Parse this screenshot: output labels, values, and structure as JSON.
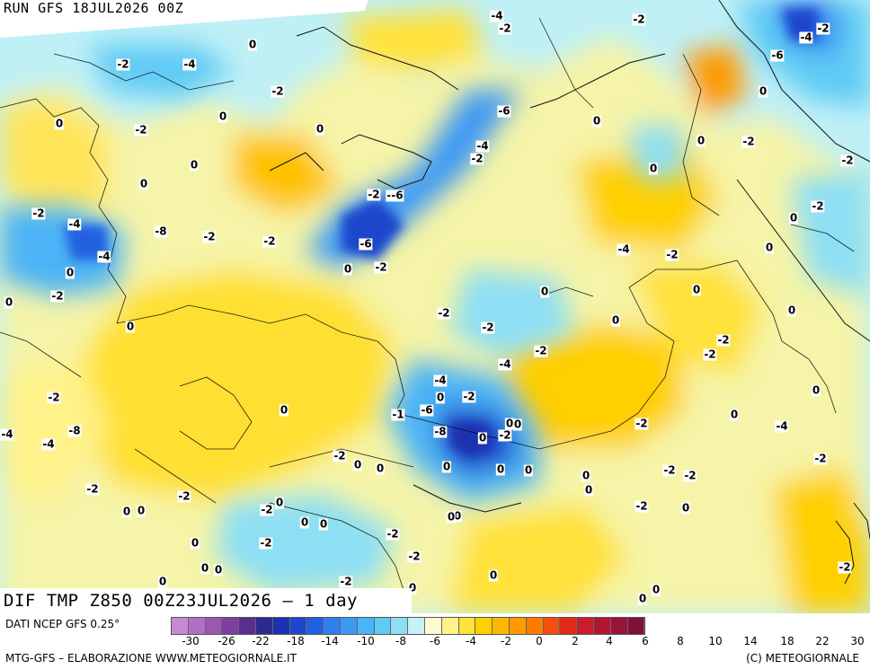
{
  "header": {
    "run_label": "RUN GFS 18JUL2026 00Z"
  },
  "map": {
    "field_label": "DIF TMP Z850 00Z23JUL2026 – 1 day",
    "isolines": [
      {
        "text": "-4"
      },
      {
        "text": "-2"
      },
      {
        "text": "-2"
      },
      {
        "text": "-4"
      },
      {
        "text": "-2"
      },
      {
        "text": "0"
      },
      {
        "text": "-2"
      },
      {
        "text": "-4"
      },
      {
        "text": "-6"
      },
      {
        "text": "0"
      },
      {
        "text": "-2"
      },
      {
        "text": "0"
      },
      {
        "text": "-6"
      },
      {
        "text": "0"
      },
      {
        "text": "0"
      },
      {
        "text": "-2"
      },
      {
        "text": "0"
      },
      {
        "text": "-4"
      },
      {
        "text": "-2"
      },
      {
        "text": "0"
      },
      {
        "text": "-2"
      },
      {
        "text": "0"
      },
      {
        "text": "0"
      },
      {
        "text": "-2"
      },
      {
        "text": "-2"
      },
      {
        "text": "-4"
      },
      {
        "text": "-6"
      },
      {
        "text": "-2"
      },
      {
        "text": "-4"
      },
      {
        "text": "-2"
      },
      {
        "text": "0"
      },
      {
        "text": "-6"
      },
      {
        "text": "0"
      },
      {
        "text": "-8"
      },
      {
        "text": "-2"
      },
      {
        "text": "-4"
      },
      {
        "text": "-2"
      },
      {
        "text": "0"
      },
      {
        "text": "-2"
      },
      {
        "text": "-4"
      },
      {
        "text": "-2"
      },
      {
        "text": "0"
      },
      {
        "text": "0"
      },
      {
        "text": "-2"
      },
      {
        "text": "0"
      },
      {
        "text": "0"
      },
      {
        "text": "0"
      },
      {
        "text": "-2"
      },
      {
        "text": "-2"
      },
      {
        "text": "0"
      },
      {
        "text": "0"
      },
      {
        "text": "0"
      },
      {
        "text": "-2"
      },
      {
        "text": "-2"
      },
      {
        "text": "-2"
      },
      {
        "text": "-4"
      },
      {
        "text": "-4"
      },
      {
        "text": "-2"
      },
      {
        "text": "0"
      },
      {
        "text": "-2"
      },
      {
        "text": "0"
      },
      {
        "text": "0"
      },
      {
        "text": "-6"
      },
      {
        "text": "-1"
      },
      {
        "text": "-8"
      },
      {
        "text": "0"
      },
      {
        "text": "-2"
      },
      {
        "text": "0"
      },
      {
        "text": "0"
      },
      {
        "text": "0"
      },
      {
        "text": "-2"
      },
      {
        "text": "-4"
      },
      {
        "text": "-4"
      },
      {
        "text": "-8"
      },
      {
        "text": "-4"
      },
      {
        "text": "-2"
      },
      {
        "text": "0"
      },
      {
        "text": "0"
      },
      {
        "text": "0"
      },
      {
        "text": "0"
      },
      {
        "text": "0"
      },
      {
        "text": "0"
      },
      {
        "text": "0"
      },
      {
        "text": "-2"
      },
      {
        "text": "-2"
      },
      {
        "text": "-2"
      },
      {
        "text": "-2"
      },
      {
        "text": "-2"
      },
      {
        "text": "0"
      },
      {
        "text": "-2"
      },
      {
        "text": "-2"
      },
      {
        "text": "0"
      },
      {
        "text": "0"
      },
      {
        "text": "0"
      },
      {
        "text": "0"
      },
      {
        "text": "0"
      },
      {
        "text": "0"
      },
      {
        "text": "0"
      },
      {
        "text": "-2"
      },
      {
        "text": "-2"
      },
      {
        "text": "0"
      },
      {
        "text": "-2"
      },
      {
        "text": "0"
      },
      {
        "text": "0"
      },
      {
        "text": "-2"
      },
      {
        "text": "0"
      },
      {
        "text": "0"
      },
      {
        "text": "-2"
      },
      {
        "text": "0"
      },
      {
        "text": "0"
      },
      {
        "text": "0"
      }
    ]
  },
  "legend": {
    "source_label": "DATI NCEP GFS 0.25°",
    "scale_colors": [
      "#c58ad6",
      "#b070c6",
      "#9a57b4",
      "#7e3f9e",
      "#5a2f8f",
      "#2e2a8f",
      "#1a32b0",
      "#1f47cc",
      "#2160e0",
      "#2f7fef",
      "#3d99f4",
      "#4bb4f6",
      "#5fcbf5",
      "#8ddff4",
      "#c7f0f7",
      "#fefbd0",
      "#fff28a",
      "#ffe23a",
      "#ffd000",
      "#ffb600",
      "#ff9a00",
      "#ff7b00",
      "#f24e10",
      "#e02a17",
      "#c91d2a",
      "#b01733",
      "#981438",
      "#80103a"
    ],
    "tick_labels": [
      "-30",
      "-26",
      "-22",
      "-18",
      "-14",
      "-10",
      "-8",
      "-6",
      "-4",
      "-2",
      "0",
      "2",
      "4",
      "6",
      "8",
      "10",
      "14",
      "18",
      "22",
      "30"
    ],
    "footer_left": "MTG-GFS – ELABORAZIONE WWW.METEOGIORNALE.IT",
    "footer_right": "(C) METEOGIORNALE"
  }
}
